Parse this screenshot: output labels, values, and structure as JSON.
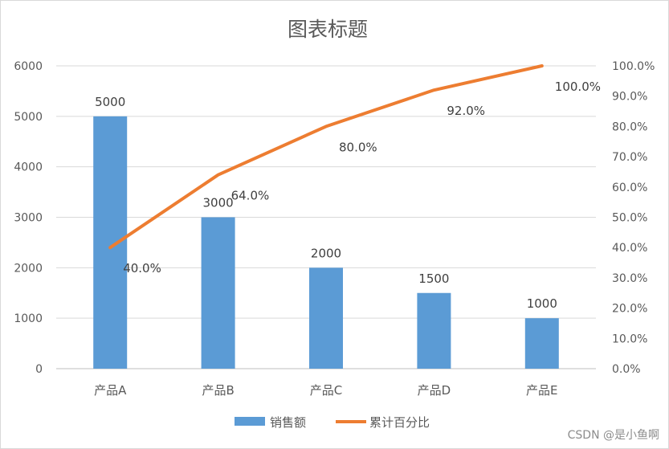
{
  "chart_data": {
    "type": "bar",
    "title": "图表标题",
    "categories": [
      "产品A",
      "产品B",
      "产品C",
      "产品D",
      "产品E"
    ],
    "series": [
      {
        "name": "销售额",
        "kind": "bar",
        "axis": "left",
        "color": "#5b9bd5",
        "values": [
          5000,
          3000,
          2000,
          1500,
          1000
        ],
        "labels": [
          "5000",
          "3000",
          "2000",
          "1500",
          "1000"
        ]
      },
      {
        "name": "累计百分比",
        "kind": "line",
        "axis": "right",
        "color": "#ed7d31",
        "values": [
          40.0,
          64.0,
          80.0,
          92.0,
          100.0
        ],
        "labels": [
          "40.0%",
          "64.0%",
          "80.0%",
          "92.0%",
          "100.0%"
        ]
      }
    ],
    "y_left": {
      "min": 0,
      "max": 6000,
      "ticks": [
        "0",
        "1000",
        "2000",
        "3000",
        "4000",
        "5000",
        "6000"
      ]
    },
    "y_right": {
      "min": 0,
      "max": 100,
      "ticks": [
        "0.0%",
        "10.0%",
        "20.0%",
        "30.0%",
        "40.0%",
        "50.0%",
        "60.0%",
        "70.0%",
        "80.0%",
        "90.0%",
        "100.0%"
      ]
    },
    "grid": true,
    "legend_position": "bottom"
  },
  "watermark": "CSDN @是小鱼啊"
}
